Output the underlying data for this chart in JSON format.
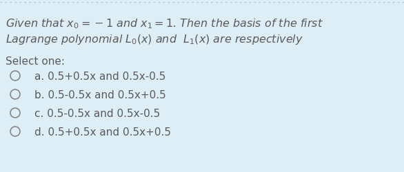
{
  "background_color": "#ddeef6",
  "border_top_color": "#b0ccd8",
  "title_line1": "Given that $x_0= -1$ and $x_1= 1$. Then the basis of the first",
  "title_line2": "Lagrange polynomial $L_0(x)$ and  $L_1(x)$ are respectively",
  "select_label": "Select one:",
  "options": [
    "a. 0.5+0.5x and 0.5x-0.5",
    "b. 0.5-0.5x and 0.5x+0.5",
    "c. 0.5-0.5x and 0.5x-0.5",
    "d. 0.5+0.5x and 0.5x+0.5"
  ],
  "font_size_title": 11.5,
  "font_size_options": 11,
  "font_size_select": 11,
  "text_color": "#5a5a5a",
  "circle_color": "#888888",
  "figsize": [
    5.86,
    2.51
  ],
  "dpi": 100
}
